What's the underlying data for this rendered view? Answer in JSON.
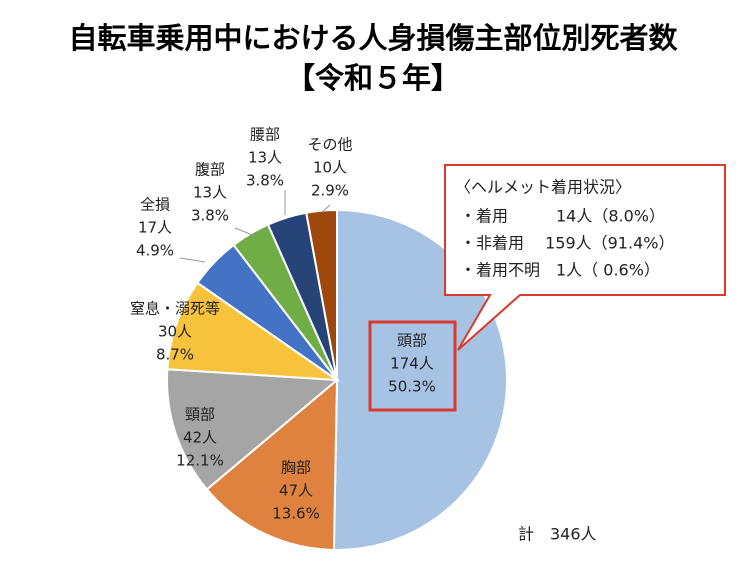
{
  "chart_data": {
    "type": "pie",
    "title": "自転車乗用中における人身損傷主部位別死者数",
    "subtitle": "【令和５年】",
    "categories": [
      "頭部",
      "胸部",
      "頸部",
      "窒息・溺死等",
      "全損",
      "腹部",
      "腰部",
      "その他"
    ],
    "values": [
      174,
      47,
      42,
      30,
      17,
      13,
      13,
      10
    ],
    "value_labels": [
      "174人",
      "47人",
      "42人",
      "30人",
      "17人",
      "13人",
      "13人",
      "10人"
    ],
    "percents": [
      50.3,
      13.6,
      12.1,
      8.7,
      4.9,
      3.8,
      3.8,
      2.9
    ],
    "percent_labels": [
      "50.3%",
      "13.6%",
      "12.1%",
      "8.7%",
      "4.9%",
      "3.8%",
      "3.8%",
      "2.9%"
    ],
    "colors": [
      "#a6c3e4",
      "#e0823f",
      "#a5a5a5",
      "#f8c33c",
      "#4472c4",
      "#70ad47",
      "#264478",
      "#9e480e"
    ],
    "total_label": "計　346人",
    "annotation": [
      "〈ヘルメット着用状況〉",
      "・着用　　　14人（8.0%）",
      "・非着用　 159人（91.4%）",
      "・着用不明　1人（ 0.6%）"
    ]
  }
}
